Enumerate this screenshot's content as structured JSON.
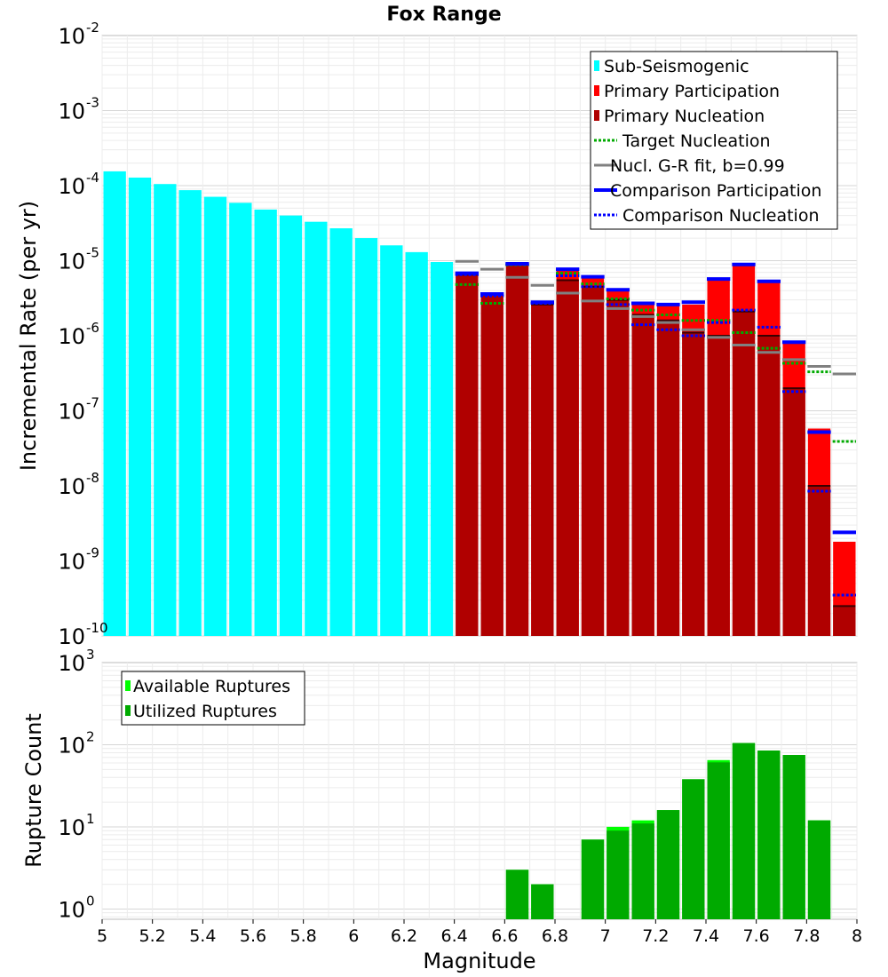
{
  "chart_data": [
    {
      "type": "bar",
      "title": "Fox Range",
      "xlabel": "Magnitude",
      "ylabel": "Incremental Rate (per yr)",
      "yscale": "log",
      "ylim": [
        1e-10,
        0.01
      ],
      "xlim": [
        5,
        8
      ],
      "grid": true,
      "legend_position": "top-right",
      "y_tick_labels": [
        {
          "base": "10",
          "exp": "-10"
        },
        {
          "base": "10",
          "exp": "-9"
        },
        {
          "base": "10",
          "exp": "-8"
        },
        {
          "base": "10",
          "exp": "-7"
        },
        {
          "base": "10",
          "exp": "-6"
        },
        {
          "base": "10",
          "exp": "-5"
        },
        {
          "base": "10",
          "exp": "-4"
        },
        {
          "base": "10",
          "exp": "-3"
        },
        {
          "base": "10",
          "exp": "-2"
        }
      ],
      "legend": [
        {
          "label": "Sub-Seismogenic",
          "style": "bar",
          "color": "#00ffff"
        },
        {
          "label": "Primary Participation",
          "style": "bar",
          "color": "#ff0000"
        },
        {
          "label": "Primary Nucleation",
          "style": "bar",
          "color": "#b00000"
        },
        {
          "label": "Target Nucleation",
          "style": "dotted",
          "color": "#00aa00"
        },
        {
          "label": "Nucl. G-R fit, b=0.99",
          "style": "solid",
          "color": "#808080"
        },
        {
          "label": "Comparison Participation",
          "style": "solid",
          "color": "#0000ff"
        },
        {
          "label": "Comparison Nucleation",
          "style": "dotted",
          "color": "#0000ff"
        }
      ],
      "series": [
        {
          "name": "Sub-Seismogenic",
          "color": "#00ffff",
          "x": [
            5.05,
            5.15,
            5.25,
            5.35,
            5.45,
            5.55,
            5.65,
            5.75,
            5.85,
            5.95,
            6.05,
            6.15,
            6.25,
            6.35
          ],
          "values": [
            0.000155,
            0.000128,
            0.000105,
            8.7e-05,
            7.1e-05,
            5.9e-05,
            4.8e-05,
            4e-05,
            3.3e-05,
            2.7e-05,
            2e-05,
            1.6e-05,
            1.3e-05,
            9.6e-06
          ]
        },
        {
          "name": "Primary Participation",
          "color": "#ff0000",
          "x": [
            6.45,
            6.55,
            6.65,
            6.75,
            6.85,
            6.95,
            7.05,
            7.15,
            7.25,
            7.35,
            7.45,
            7.55,
            7.65,
            7.75,
            7.85,
            7.95
          ],
          "values": [
            6.5e-06,
            3.5e-06,
            9e-06,
            2.7e-06,
            7.5e-06,
            6e-06,
            4e-06,
            2.6e-06,
            2.5e-06,
            2.6e-06,
            5.5e-06,
            8.5e-06,
            5.2e-06,
            8e-07,
            5.8e-08,
            1.8e-09
          ]
        },
        {
          "name": "Primary Nucleation",
          "color": "#b00000",
          "x": [
            6.45,
            6.55,
            6.65,
            6.75,
            6.85,
            6.95,
            7.05,
            7.15,
            7.25,
            7.35,
            7.45,
            7.55,
            7.65,
            7.75,
            7.85,
            7.95
          ],
          "values": [
            6.5e-06,
            3.5e-06,
            9e-06,
            2.6e-06,
            5.5e-06,
            4.5e-06,
            3e-06,
            1.9e-06,
            1.6e-06,
            1.1e-06,
            1e-06,
            2.1e-06,
            1e-06,
            2e-07,
            1e-08,
            2.5e-10
          ]
        },
        {
          "name": "Target Nucleation",
          "color": "#00aa00",
          "x": [
            6.45,
            6.55,
            6.65,
            6.75,
            6.85,
            6.95,
            7.05,
            7.15,
            7.25,
            7.35,
            7.45,
            7.55,
            7.65,
            7.75,
            7.85,
            7.95
          ],
          "values": [
            4.8e-06,
            2.7e-06,
            8.8e-06,
            2.7e-06,
            6.8e-06,
            4.9e-06,
            3.1e-06,
            2.2e-06,
            1.9e-06,
            1.6e-06,
            1.6e-06,
            1.1e-06,
            6.8e-07,
            4.3e-07,
            3.3e-07,
            3.9e-08
          ]
        },
        {
          "name": "Nucl. G-R fit, b=0.99",
          "color": "#808080",
          "x": [
            6.45,
            6.55,
            6.65,
            6.75,
            6.85,
            6.95,
            7.05,
            7.15,
            7.25,
            7.35,
            7.45,
            7.55,
            7.65,
            7.75,
            7.85,
            7.95
          ],
          "values": [
            9.8e-06,
            7.7e-06,
            6e-06,
            4.7e-06,
            3.7e-06,
            2.9e-06,
            2.3e-06,
            1.8e-06,
            1.5e-06,
            1.2e-06,
            9.5e-07,
            7.5e-07,
            6e-07,
            4.8e-07,
            3.9e-07,
            3.1e-07
          ]
        },
        {
          "name": "Comparison Participation",
          "color": "#0000ff",
          "x": [
            6.45,
            6.55,
            6.65,
            6.75,
            6.85,
            6.95,
            7.05,
            7.15,
            7.25,
            7.35,
            7.45,
            7.55,
            7.65,
            7.75,
            7.85,
            7.95
          ],
          "values": [
            6.8e-06,
            3.6e-06,
            9.1e-06,
            2.8e-06,
            7.7e-06,
            6.1e-06,
            4.1e-06,
            2.7e-06,
            2.6e-06,
            2.8e-06,
            5.7e-06,
            8.9e-06,
            5.3e-06,
            8.2e-07,
            5.2e-08,
            2.4e-09
          ]
        },
        {
          "name": "Comparison Nucleation",
          "color": "#0000ff",
          "x": [
            6.45,
            6.55,
            6.65,
            6.75,
            6.85,
            6.95,
            7.05,
            7.15,
            7.25,
            7.35,
            7.45,
            7.55,
            7.65,
            7.75,
            7.85,
            7.95
          ],
          "values": [
            6.5e-06,
            3.4e-06,
            8.9e-06,
            2.7e-06,
            6.3e-06,
            4.5e-06,
            2.6e-06,
            1.4e-06,
            1.2e-06,
            1e-06,
            1.5e-06,
            2.2e-06,
            1.3e-06,
            1.8e-07,
            8.5e-09,
            3.5e-10
          ]
        }
      ]
    },
    {
      "type": "bar",
      "xlabel": "Magnitude",
      "ylabel": "Rupture Count",
      "yscale": "log",
      "ylim": [
        0.75,
        1000
      ],
      "xlim": [
        5,
        8
      ],
      "grid": true,
      "legend_position": "top-left",
      "x_ticks": [
        5,
        5.2,
        5.4,
        5.6,
        5.8,
        6,
        6.2,
        6.4,
        6.6,
        6.8,
        7,
        7.2,
        7.4,
        7.6,
        7.8,
        8
      ],
      "x_tick_labels": [
        "5",
        "5.2",
        "5.4",
        "5.6",
        "5.8",
        "6",
        "6.2",
        "6.4",
        "6.6",
        "6.8",
        "7",
        "7.2",
        "7.4",
        "7.6",
        "7.8",
        "8"
      ],
      "y_tick_labels": [
        {
          "base": "10",
          "exp": "0"
        },
        {
          "base": "10",
          "exp": "1"
        },
        {
          "base": "10",
          "exp": "2"
        },
        {
          "base": "10",
          "exp": "3"
        }
      ],
      "legend": [
        {
          "label": "Available Ruptures",
          "style": "bar",
          "color": "#00ff00"
        },
        {
          "label": "Utilized Ruptures",
          "style": "bar",
          "color": "#00aa00"
        }
      ],
      "series": [
        {
          "name": "Available Ruptures",
          "color": "#00ff00",
          "x": [
            6.65,
            6.75,
            6.95,
            7.05,
            7.15,
            7.25,
            7.35,
            7.45,
            7.55,
            7.65,
            7.75,
            7.85
          ],
          "values": [
            3,
            2,
            7,
            10,
            12,
            16,
            38,
            65,
            105,
            85,
            75,
            12
          ]
        },
        {
          "name": "Utilized Ruptures",
          "color": "#00aa00",
          "x": [
            6.65,
            6.75,
            6.95,
            7.05,
            7.15,
            7.25,
            7.35,
            7.45,
            7.55,
            7.65,
            7.75,
            7.85
          ],
          "values": [
            3,
            2,
            7,
            9,
            11,
            16,
            38,
            61,
            105,
            85,
            75,
            12
          ]
        }
      ]
    }
  ]
}
